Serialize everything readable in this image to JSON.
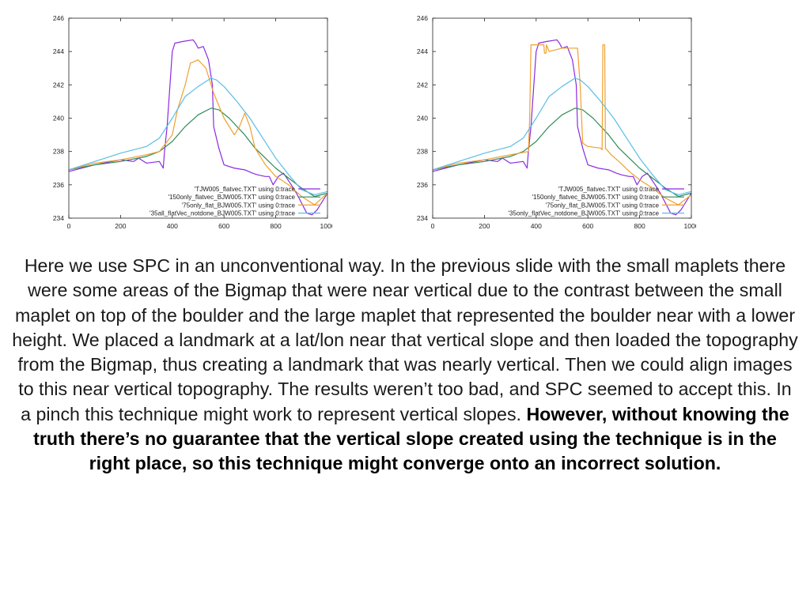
{
  "chart_data": [
    {
      "type": "line",
      "xlim": [
        0,
        1000
      ],
      "ylim": [
        234,
        246
      ],
      "xticks": [
        0,
        200,
        400,
        600,
        800,
        1000
      ],
      "yticks": [
        234,
        236,
        238,
        240,
        242,
        244,
        246
      ],
      "grid": false,
      "legend_position": "bottom-right",
      "series": [
        {
          "name": "'TJW005_flatvec.TXT' using 0:trace",
          "color": "#8a2be2",
          "x": [
            0,
            100,
            200,
            250,
            270,
            300,
            350,
            365,
            370,
            380,
            400,
            410,
            440,
            480,
            490,
            500,
            520,
            540,
            555,
            560,
            580,
            600,
            640,
            680,
            710,
            730,
            760,
            775,
            790,
            810,
            830,
            860,
            880,
            900,
            920,
            940,
            960,
            980,
            1000
          ],
          "y": [
            236.8,
            237.2,
            237.5,
            237.4,
            237.6,
            237.3,
            237.4,
            237.0,
            238.0,
            239.5,
            244.0,
            244.5,
            244.6,
            244.7,
            244.5,
            244.2,
            244.3,
            243.5,
            242.0,
            239.5,
            238.2,
            237.2,
            237.0,
            236.9,
            236.7,
            236.6,
            236.5,
            236.5,
            236.0,
            236.5,
            236.7,
            236.0,
            235.5,
            234.9,
            234.3,
            234.2,
            234.5,
            235.0,
            235.5
          ]
        },
        {
          "name": "'150only_flatvec_BJW005.TXT' using 0:trace",
          "color": "#2e8b57",
          "x": [
            0,
            100,
            200,
            300,
            350,
            400,
            450,
            500,
            550,
            580,
            620,
            680,
            720,
            760,
            800,
            850,
            900,
            950,
            1000
          ],
          "y": [
            236.9,
            237.2,
            237.4,
            237.7,
            238.0,
            238.6,
            239.5,
            240.2,
            240.6,
            240.5,
            240.0,
            239.0,
            238.2,
            237.6,
            237.0,
            236.4,
            235.8,
            235.3,
            235.5
          ]
        },
        {
          "name": "'75only_flat_BJW005.TXT' using 0:trace",
          "color": "#f0a030",
          "x": [
            0,
            100,
            200,
            300,
            350,
            400,
            420,
            450,
            470,
            500,
            530,
            560,
            600,
            640,
            660,
            680,
            700,
            720,
            760,
            800,
            850,
            900,
            950,
            1000
          ],
          "y": [
            236.9,
            237.3,
            237.5,
            237.8,
            238.0,
            239.0,
            240.5,
            242.0,
            243.3,
            243.5,
            243.0,
            241.5,
            240.0,
            239.0,
            239.5,
            240.3,
            239.5,
            238.2,
            237.2,
            236.5,
            236.0,
            235.3,
            234.8,
            235.5
          ]
        },
        {
          "name": "'35all_flatVec_notdone_BJW005.TXT' using 0:trace",
          "color": "#5bbde8",
          "x": [
            0,
            100,
            200,
            250,
            300,
            350,
            400,
            450,
            500,
            550,
            570,
            600,
            650,
            700,
            750,
            800,
            850,
            900,
            950,
            1000
          ],
          "y": [
            236.9,
            237.4,
            237.9,
            238.1,
            238.3,
            238.8,
            240.0,
            241.3,
            241.9,
            242.4,
            242.3,
            241.9,
            241.0,
            240.0,
            238.8,
            237.6,
            236.6,
            235.7,
            235.4,
            235.6
          ]
        }
      ]
    },
    {
      "type": "line",
      "xlim": [
        0,
        1000
      ],
      "ylim": [
        234,
        246
      ],
      "xticks": [
        0,
        200,
        400,
        600,
        800,
        1000
      ],
      "yticks": [
        234,
        236,
        238,
        240,
        242,
        244,
        246
      ],
      "grid": false,
      "legend_position": "bottom-right",
      "series": [
        {
          "name": "'TJW005_flatvec.TXT' using 0:trace",
          "color": "#8a2be2",
          "x": [
            0,
            100,
            200,
            250,
            270,
            300,
            350,
            365,
            370,
            380,
            400,
            410,
            440,
            480,
            490,
            500,
            520,
            540,
            555,
            560,
            580,
            600,
            640,
            680,
            710,
            730,
            760,
            775,
            790,
            810,
            830,
            860,
            880,
            900,
            920,
            940,
            960,
            980,
            1000
          ],
          "y": [
            236.8,
            237.2,
            237.5,
            237.4,
            237.6,
            237.3,
            237.4,
            237.0,
            238.0,
            239.5,
            244.0,
            244.5,
            244.6,
            244.7,
            244.5,
            244.2,
            244.3,
            243.5,
            242.0,
            239.5,
            238.2,
            237.2,
            237.0,
            236.9,
            236.7,
            236.6,
            236.5,
            236.5,
            236.0,
            236.5,
            236.7,
            236.0,
            235.5,
            234.9,
            234.3,
            234.2,
            234.5,
            235.0,
            235.5
          ]
        },
        {
          "name": "'150only_flatvec_BJW005.TXT' using 0:trace",
          "color": "#2e8b57",
          "x": [
            0,
            100,
            200,
            300,
            350,
            400,
            450,
            500,
            550,
            580,
            620,
            680,
            720,
            760,
            800,
            850,
            900,
            950,
            1000
          ],
          "y": [
            236.9,
            237.2,
            237.4,
            237.7,
            238.0,
            238.6,
            239.5,
            240.2,
            240.6,
            240.5,
            240.0,
            239.0,
            238.2,
            237.6,
            237.0,
            236.4,
            235.8,
            235.3,
            235.5
          ]
        },
        {
          "name": "'75only_flat_BJW005.TXT' using 0:trace",
          "color": "#f0a030",
          "x": [
            0,
            100,
            200,
            300,
            370,
            375,
            380,
            400,
            430,
            432,
            438,
            440,
            450,
            500,
            560,
            570,
            580,
            600,
            650,
            655,
            658,
            665,
            668,
            690,
            720,
            760,
            800,
            850,
            900,
            950,
            1000
          ],
          "y": [
            236.9,
            237.3,
            237.5,
            237.8,
            238.0,
            240.0,
            244.4,
            244.4,
            244.4,
            243.9,
            243.9,
            244.4,
            244.0,
            244.2,
            244.2,
            242.0,
            238.5,
            238.3,
            238.2,
            238.1,
            244.4,
            244.4,
            238.2,
            237.8,
            237.4,
            236.8,
            236.3,
            235.8,
            235.2,
            234.8,
            235.4
          ]
        },
        {
          "name": "'35only_flatVec_notdone_BJW005.TXT' using 0:trace",
          "color": "#5bbde8",
          "x": [
            0,
            100,
            200,
            250,
            300,
            350,
            400,
            450,
            500,
            550,
            570,
            600,
            650,
            700,
            750,
            800,
            850,
            900,
            950,
            1000
          ],
          "y": [
            236.9,
            237.4,
            237.9,
            238.1,
            238.3,
            238.8,
            240.0,
            241.3,
            241.9,
            242.4,
            242.3,
            241.9,
            241.0,
            240.0,
            238.8,
            237.6,
            236.6,
            235.7,
            235.4,
            235.6
          ]
        }
      ]
    }
  ],
  "caption": {
    "text": "Here we use SPC in an unconventional way. In the previous slide with the small maplets there were some areas of the Bigmap that were near vertical due to the contrast between the small maplet on top of the boulder and the large maplet that represented the boulder near with a lower height. We placed a landmark at a lat/lon near that vertical slope and then loaded the topography from the Bigmap, thus creating a landmark that was nearly vertical. Then we could align images to this near vertical topography. The results weren’t too bad, and SPC seemed to accept this. In a pinch this technique might work to represent vertical slopes. ",
    "bold": "However, without knowing the truth there’s no guarantee that the vertical slope created using the technique is in the right place, so this technique might converge onto an incorrect solution."
  }
}
